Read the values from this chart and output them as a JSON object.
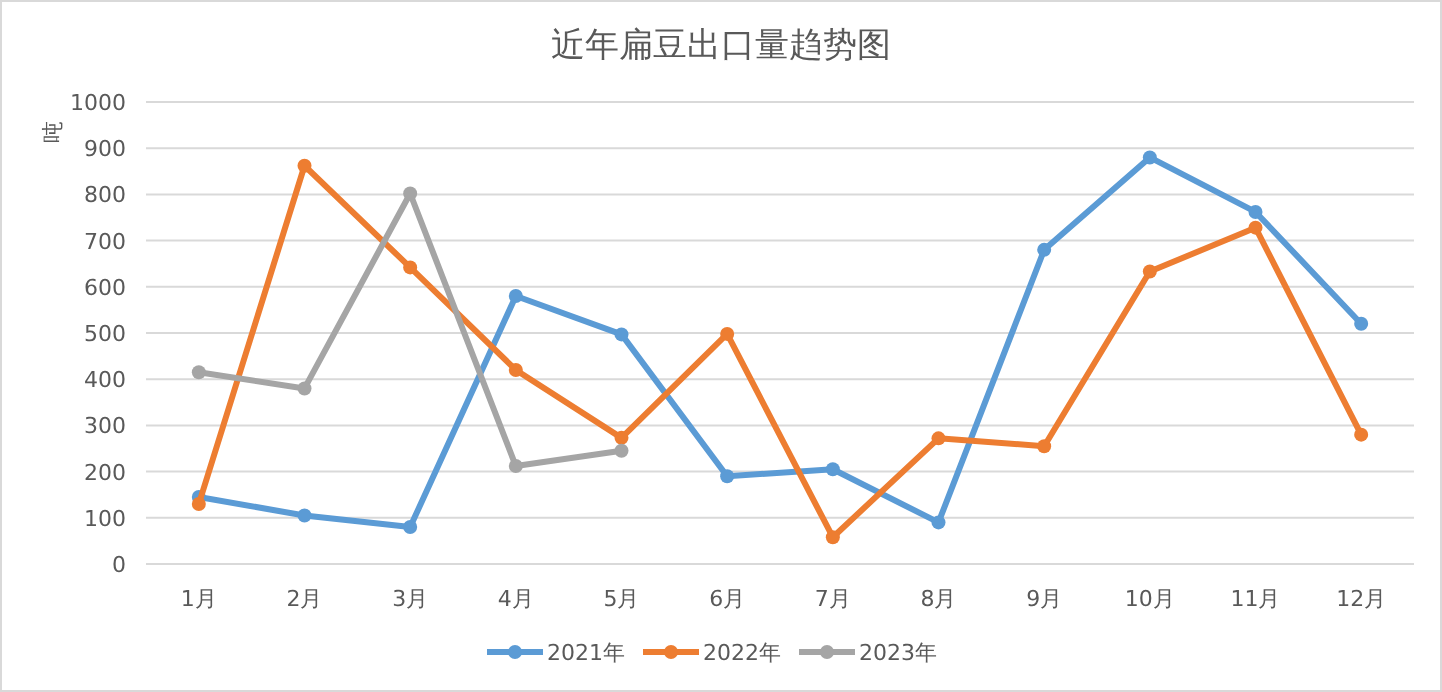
{
  "chart_data": {
    "type": "line",
    "title": "近年扁豆出口量趋势图",
    "ylabel": "吨",
    "categories": [
      "1月",
      "2月",
      "3月",
      "4月",
      "5月",
      "6月",
      "7月",
      "8月",
      "9月",
      "10月",
      "11月",
      "12月"
    ],
    "series": [
      {
        "name": "2021年",
        "color": "#5b9bd5",
        "values": [
          145,
          105,
          80,
          580,
          497,
          190,
          205,
          90,
          680,
          880,
          762,
          520
        ]
      },
      {
        "name": "2022年",
        "color": "#ed7d31",
        "values": [
          130,
          862,
          642,
          420,
          273,
          498,
          58,
          272,
          255,
          633,
          728,
          280
        ]
      },
      {
        "name": "2023年",
        "color": "#a5a5a5",
        "values": [
          415,
          380,
          802,
          212,
          245,
          null,
          null,
          null,
          null,
          null,
          null,
          null
        ]
      }
    ],
    "ylim": [
      0,
      1000
    ],
    "yticks": [
      0,
      100,
      200,
      300,
      400,
      500,
      600,
      700,
      800,
      900,
      1000
    ],
    "grid": "y",
    "legend": "bottom",
    "marker": "circle",
    "line_style": "solid"
  }
}
